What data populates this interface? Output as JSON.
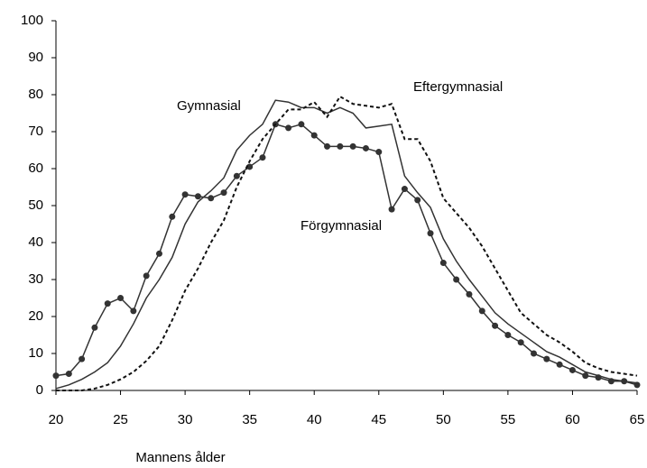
{
  "chart_data": {
    "type": "line",
    "x_label": "Mannens ålder",
    "x": [
      20,
      21,
      22,
      23,
      24,
      25,
      26,
      27,
      28,
      29,
      30,
      31,
      32,
      33,
      34,
      35,
      36,
      37,
      38,
      39,
      40,
      41,
      42,
      43,
      44,
      45,
      46,
      47,
      48,
      49,
      50,
      51,
      52,
      53,
      54,
      55,
      56,
      57,
      58,
      59,
      60,
      61,
      62,
      63,
      64,
      65
    ],
    "series": [
      {
        "name": "Förgymnasial",
        "color": "#333333",
        "line_style": "solid",
        "marker": "circle",
        "values": [
          4,
          4.5,
          8.5,
          17,
          23.5,
          25,
          21.5,
          31,
          37,
          47,
          53,
          52.5,
          52,
          53.5,
          58,
          60.5,
          63,
          72,
          71,
          72,
          69,
          66,
          66,
          66,
          65.5,
          64.5,
          49,
          54.5,
          51.5,
          42.5,
          34.5,
          30,
          26,
          21.5,
          17.5,
          15,
          13,
          10,
          8.5,
          7,
          5.5,
          4,
          3.5,
          2.5,
          2.5,
          1.5
        ]
      },
      {
        "name": "Gymnasial",
        "color": "#333333",
        "line_style": "solid",
        "marker": "none",
        "values": [
          0.5,
          1.5,
          3,
          5,
          7.5,
          12,
          18,
          25,
          30,
          36,
          45,
          51,
          54,
          57.5,
          65,
          69,
          72,
          78.5,
          78,
          76.5,
          76.5,
          75,
          76.5,
          75,
          71,
          71.5,
          72,
          58,
          53.5,
          49.5,
          41,
          35,
          30,
          25.5,
          21,
          18,
          15.5,
          13,
          10.5,
          9,
          7,
          5,
          4,
          3,
          2.5,
          2
        ]
      },
      {
        "name": "Eftergymnasial",
        "color": "#111111",
        "line_style": "dashed",
        "marker": "none",
        "values": [
          0,
          0,
          0,
          0.5,
          1.5,
          3,
          5,
          8,
          12,
          19,
          27,
          33,
          40,
          46,
          55,
          62,
          68,
          72,
          76,
          76,
          78,
          74,
          79.5,
          77.5,
          77,
          76.5,
          77.5,
          68,
          68,
          62,
          52,
          48,
          44,
          39,
          33,
          27,
          21,
          18,
          15,
          13,
          10.5,
          7.5,
          6,
          5,
          4.5,
          4
        ]
      }
    ],
    "xlim": [
      20,
      65
    ],
    "xticks": [
      20,
      25,
      30,
      35,
      40,
      45,
      50,
      55,
      60,
      65
    ],
    "ylim": [
      0,
      100
    ],
    "yticks": [
      0,
      10,
      20,
      30,
      40,
      50,
      60,
      70,
      80,
      90,
      100
    ],
    "grid": false
  }
}
